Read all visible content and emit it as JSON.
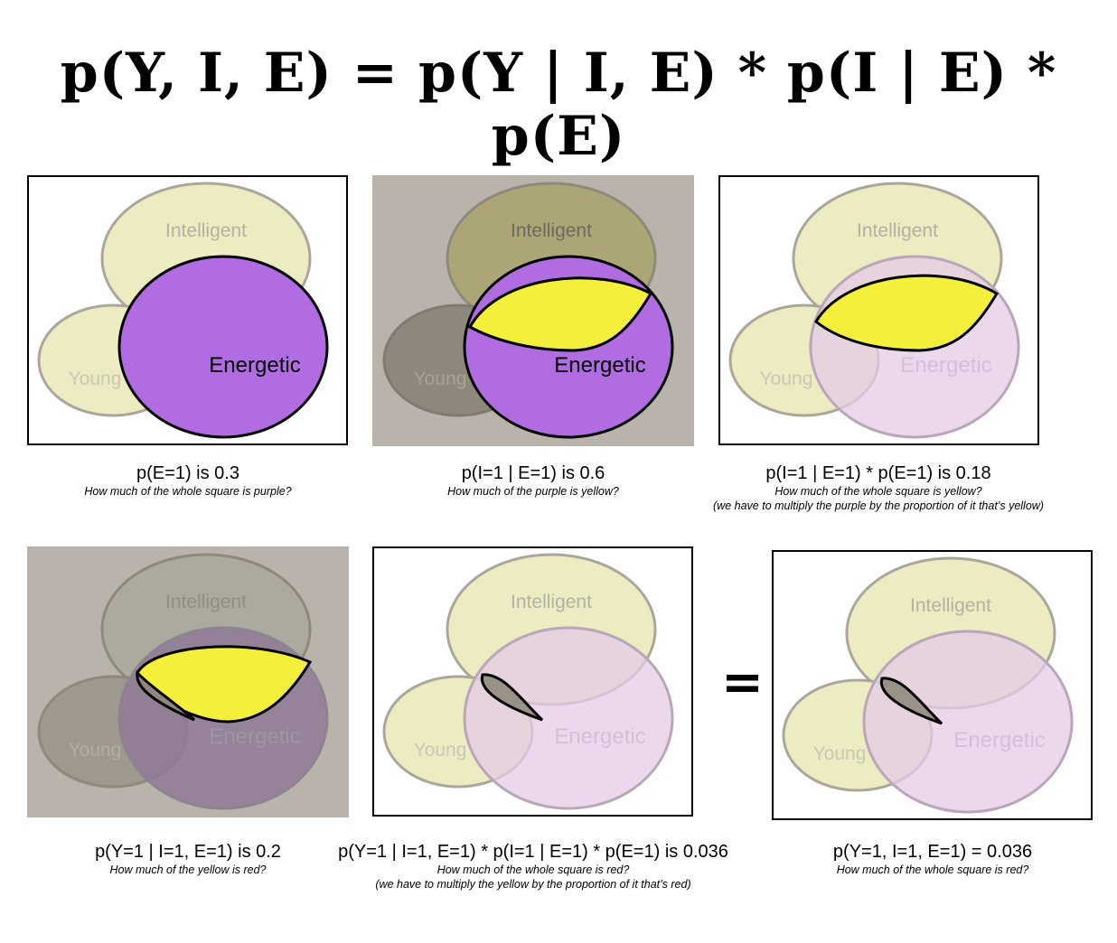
{
  "title": "p(Y, I, E) = p(Y | I, E) * p(I | E) * p(E)",
  "labels": {
    "intelligent": "Intelligent",
    "young": "Young",
    "energetic": "Energetic"
  },
  "equals_sign": "=",
  "colors": {
    "purple": "#b06ce0",
    "yellow": "#f3ef3a",
    "red_region": "#9a9188",
    "light_yellow": "#ecebc2",
    "light_purple": "#e5cbe7",
    "gray_bg": "#b9b3ac"
  },
  "panels": [
    {
      "caption": "p(E=1) is 0.3",
      "question": "How much of the whole square is purple?",
      "note": ""
    },
    {
      "caption": "p(I=1 | E=1) is 0.6",
      "question": "How much of the purple is yellow?",
      "note": ""
    },
    {
      "caption": "p(I=1 | E=1) * p(E=1) is 0.18",
      "question": "How much of the whole square is yellow?",
      "note": "(we have to multiply the purple by the proportion of it that’s yellow)"
    },
    {
      "caption": "p(Y=1 | I=1, E=1) is 0.2",
      "question": "How much of the yellow is red?",
      "note": ""
    },
    {
      "caption": "p(Y=1 | I=1, E=1) * p(I=1 | E=1) * p(E=1) is 0.036",
      "question": "How much of the whole square is red?",
      "note": "(we have to multiply the yellow by the proportion of it that’s red)"
    },
    {
      "caption": "p(Y=1, I=1, E=1) = 0.036",
      "question": "How much of the whole square is red?",
      "note": ""
    }
  ]
}
